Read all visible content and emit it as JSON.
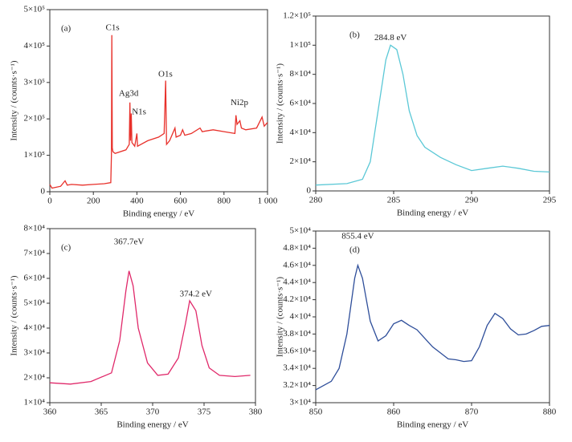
{
  "chart_data": [
    {
      "type": "line",
      "label": "(a)",
      "xlabel": "Binding energy / eV",
      "ylabel": "Intensity / (counts·s⁻¹)",
      "color": "#e8302a",
      "x": [
        0,
        10,
        50,
        70,
        80,
        100,
        150,
        200,
        250,
        280,
        283,
        285,
        287,
        290,
        300,
        350,
        365,
        368,
        371,
        374,
        377,
        390,
        400,
        403,
        450,
        500,
        525,
        532,
        536,
        550,
        575,
        580,
        600,
        610,
        620,
        650,
        690,
        700,
        750,
        800,
        850,
        855,
        860,
        873,
        880,
        900,
        950,
        975,
        985,
        1000
      ],
      "values": [
        20000,
        10000,
        15000,
        30000,
        18000,
        20000,
        18000,
        20000,
        22000,
        25000,
        100000,
        430000,
        120000,
        110000,
        105000,
        115000,
        130000,
        245000,
        140000,
        215000,
        135000,
        125000,
        160000,
        125000,
        140000,
        150000,
        160000,
        305000,
        130000,
        140000,
        175000,
        150000,
        155000,
        170000,
        155000,
        160000,
        175000,
        165000,
        170000,
        165000,
        160000,
        210000,
        185000,
        195000,
        175000,
        170000,
        175000,
        205000,
        180000,
        190000
      ],
      "xlim": [
        0,
        1000
      ],
      "xticks": [
        0,
        200,
        400,
        600,
        800,
        {
          "value": 1000,
          "label": "1 000"
        }
      ],
      "ylim": [
        0,
        500000
      ],
      "yticks": [
        0,
        {
          "value": 100000,
          "label": "1×10⁵"
        },
        {
          "value": 200000,
          "label": "2×10⁵"
        },
        {
          "value": 300000,
          "label": "3×10⁵"
        },
        {
          "value": 400000,
          "label": "4×10⁵"
        },
        {
          "value": 500000,
          "label": "5×10⁵"
        }
      ],
      "annotations": [
        {
          "text": "C1s",
          "x": 288,
          "y": 449000
        },
        {
          "text": "Ag3d",
          "x": 362,
          "y": 269000
        },
        {
          "text": "N1s",
          "x": 410,
          "y": 218000
        },
        {
          "text": "O1s",
          "x": 531,
          "y": 322000
        },
        {
          "text": "Ni2p",
          "x": 871,
          "y": 244000
        }
      ]
    },
    {
      "type": "line",
      "label": "(b)",
      "xlabel": "Binding energy / eV",
      "ylabel": "Intensity / (counts·s⁻¹)",
      "color": "#5bc8d6",
      "x": [
        280,
        282,
        283,
        283.5,
        284,
        284.5,
        284.8,
        285.2,
        285.6,
        286,
        286.5,
        287,
        288,
        289,
        290,
        291,
        292,
        293,
        294,
        295
      ],
      "values": [
        4000,
        5000,
        8000,
        20000,
        55000,
        90000,
        100000,
        97000,
        80000,
        55000,
        38000,
        30000,
        23000,
        18000,
        14000,
        15500,
        17000,
        15500,
        13500,
        13000
      ],
      "xlim": [
        280,
        295
      ],
      "xticks": [
        280,
        285,
        290,
        295
      ],
      "ylim": [
        0,
        120000
      ],
      "yticks": [
        0,
        {
          "value": 20000,
          "label": "2×10⁴"
        },
        {
          "value": 40000,
          "label": "4×10⁴"
        },
        {
          "value": 60000,
          "label": "6×10⁴"
        },
        {
          "value": 80000,
          "label": "8×10⁴"
        },
        {
          "value": 100000,
          "label": "1×10⁵"
        },
        {
          "value": 120000,
          "label": "1.2×10⁵"
        }
      ],
      "annotations": [
        {
          "text": "284.8 eV",
          "x": 284.8,
          "y": 105000
        }
      ]
    },
    {
      "type": "line",
      "label": "(c)",
      "xlabel": "Binding energy / eV",
      "ylabel": "Intensity / (counts·s⁻¹)",
      "color": "#e0296a",
      "x": [
        360,
        362,
        364,
        366,
        366.8,
        367.4,
        367.7,
        368.1,
        368.6,
        369.5,
        370.5,
        371.5,
        372.5,
        373.2,
        373.6,
        374.2,
        374.8,
        375.5,
        376.5,
        378,
        379.5
      ],
      "values": [
        18000,
        17500,
        18500,
        22000,
        35000,
        55000,
        63000,
        57000,
        40000,
        26000,
        21000,
        21500,
        28000,
        42000,
        51000,
        47000,
        33000,
        24000,
        21000,
        20500,
        21000
      ],
      "xlim": [
        360,
        380
      ],
      "xticks": [
        360,
        365,
        370,
        375,
        380
      ],
      "ylim": [
        10000,
        80000
      ],
      "yticks": [
        {
          "value": 10000,
          "label": "1×10⁴"
        },
        {
          "value": 20000,
          "label": "2×10⁴"
        },
        {
          "value": 30000,
          "label": "3×10⁴"
        },
        {
          "value": 40000,
          "label": "4×10⁴"
        },
        {
          "value": 50000,
          "label": "5×10⁴"
        },
        {
          "value": 60000,
          "label": "6×10⁴"
        },
        {
          "value": 70000,
          "label": "7×10⁴"
        },
        {
          "value": 80000,
          "label": "8×10⁴"
        }
      ],
      "annotations": [
        {
          "text": "367.7eV",
          "x": 367.7,
          "y": 74500
        },
        {
          "text": "374.2 eV",
          "x": 374.2,
          "y": 53500
        }
      ]
    },
    {
      "type": "line",
      "label": "(d)",
      "xlabel": "Binding energy / eV",
      "ylabel": "Intensity / (counts·s⁻¹)",
      "color": "#2e4e9a",
      "x": [
        850,
        852,
        853,
        854,
        855,
        855.4,
        856,
        857,
        858,
        859,
        860,
        861,
        862,
        863,
        864,
        865,
        866,
        867,
        868,
        869,
        870,
        871,
        872,
        873,
        874,
        875,
        876,
        877,
        878,
        879,
        880
      ],
      "values": [
        31500,
        32500,
        34000,
        38000,
        44500,
        46000,
        44500,
        39500,
        37200,
        37800,
        39200,
        39600,
        39000,
        38500,
        37500,
        36500,
        35800,
        35100,
        35000,
        34800,
        34900,
        36500,
        39000,
        40400,
        39800,
        38600,
        37900,
        38000,
        38400,
        38900,
        39000
      ],
      "xlim": [
        850,
        880
      ],
      "xticks": [
        850,
        860,
        870,
        880
      ],
      "ylim": [
        30000,
        50000
      ],
      "yticks": [
        {
          "value": 30000,
          "label": "3×10⁴"
        },
        {
          "value": 32000,
          "label": "3.2×10⁴"
        },
        {
          "value": 34000,
          "label": "3.4×10⁴"
        },
        {
          "value": 36000,
          "label": "3.6×10⁴"
        },
        {
          "value": 38000,
          "label": "3.8×10⁴"
        },
        {
          "value": 40000,
          "label": "4×10⁴"
        },
        {
          "value": 42000,
          "label": "4.2×10⁴"
        },
        {
          "value": 44000,
          "label": "4.4×10⁴"
        },
        {
          "value": 46000,
          "label": "4.6×10⁴"
        },
        {
          "value": 48000,
          "label": "4.8×10⁴"
        },
        {
          "value": 50000,
          "label": "5×10⁴"
        }
      ],
      "annotations": [
        {
          "text": "855.4 eV",
          "x": 855.4,
          "y": 49350
        }
      ]
    }
  ]
}
